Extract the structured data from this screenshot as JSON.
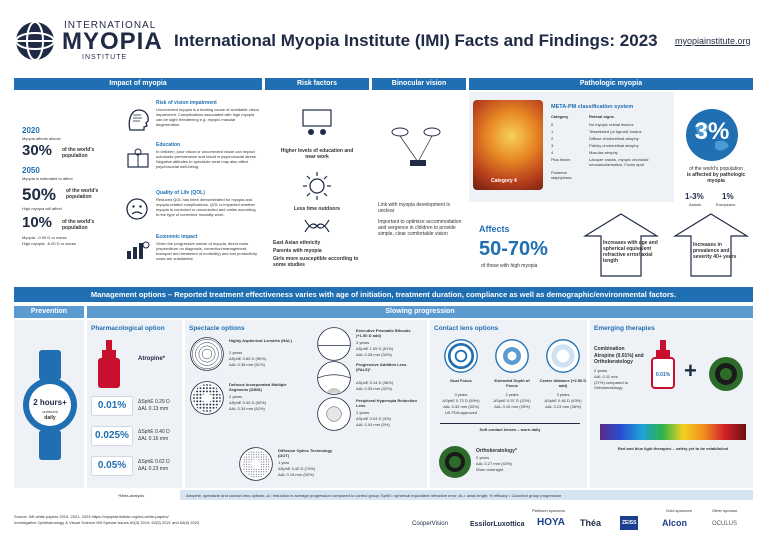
{
  "header": {
    "logo_line1": "INTERNATIONAL",
    "logo_line2": "MYOPIA",
    "logo_line3": "INSTITUTE",
    "title": "International Myopia Institute (IMI) Facts and Findings: 2023",
    "url": "myopiainstitute.org"
  },
  "bands": {
    "impact": "Impact of myopia",
    "risk": "Risk factors",
    "binocular": "Binocular vision",
    "pathologic": "Pathologic myopia",
    "management": "Management options – Reported treatment effectiveness varies with age of initiation, treatment duration, compliance as well as demographic/environmental factors.",
    "prevention": "Prevention",
    "slowing": "Slowing progression"
  },
  "impact": {
    "year2020": "2020",
    "year2020_sub": "Myopia affects almost",
    "pct30": "30%",
    "pct30_label": "of the world's population",
    "year2050": "2050",
    "year2050_sub": "Myopia is estimated to affect",
    "pct50": "50%",
    "pct50_label": "of the world's population",
    "pct50_sub": "High myopia will affect",
    "pct10": "10%",
    "pct10_label": "of the world's population",
    "legend1": "Myopia: -0.50 D or worse",
    "legend2": "High myopia: -6.00 D or worse",
    "items": [
      {
        "title": "Risk of vision impairment",
        "text": "Uncorrected myopia is a leading cause of avoidable vision impairment. Complications associated with high myopia can be sight threatening e.g. myopic macular degeneration."
      },
      {
        "title": "Education",
        "text": "In children, poor vision or uncorrected vision can impact scholastic performance and result in psychosocial stress. Negative attitudes to spectacle wear may also affect psychosocial well-being."
      },
      {
        "title": "Quality of Life (QOL)",
        "text": "Reduced QOL has been demonstrated for myopia and myopia-related complications. QOL is impacted whether myopia is corrected or uncorrected and varies according to the type of corrective modality worn."
      },
      {
        "title": "Economic impact",
        "text": "Given the progressive nature of myopia, direct costs (expenditure on diagnosis, correction/management, transport and treatment of morbidity) and lost productivity costs are substantial."
      }
    ]
  },
  "risk": {
    "item1": "Higher levels of education and near work",
    "item2": "Less time outdoors",
    "bullets": [
      "East Asian ethnicity",
      "Parents with myopia",
      "Girls more susceptible according to some studies"
    ]
  },
  "binocular": {
    "bullets": [
      "Link with myopia development is unclear",
      "Important to optimize accommodation and vergence in children to provide simple, clear comfortable vision"
    ]
  },
  "pathologic": {
    "table_title": "META-PM classification system",
    "col1": "Category",
    "col2": "Retinal signs",
    "fundus_label": "Category 4",
    "rows": [
      {
        "c": "0",
        "s": "No myopic retinal lesions"
      },
      {
        "c": "1",
        "s": "Tessellated (or tigroid) fundus"
      },
      {
        "c": "2",
        "s": "Diffuse chorioretinal atrophy"
      },
      {
        "c": "3",
        "s": "Patchy chorioretinal atrophy"
      },
      {
        "c": "4",
        "s": "Macular atrophy"
      },
      {
        "c": "Plus lesion",
        "s": "Lacquer cracks, myopic choroidal neovascularization, Fuchs spot"
      },
      {
        "c": "Posterior staphyloma",
        "s": ""
      }
    ],
    "globe_pct": "3%",
    "globe_text1": "of the world's population",
    "globe_text2": "is affected by pathologic myopia",
    "asian_val": "1-3%",
    "asian_label": "Asians",
    "euro_val": "1%",
    "euro_label": "Europeans",
    "affects": "Affects",
    "affects_pct": "50-70%",
    "affects_sub": "of those with high myopia",
    "arrow1": "Increases with age and spherical equivalent refractive error/ axial length",
    "arrow2": "Increases in prevalence and severity 40+ years"
  },
  "prevention": {
    "watch_big": "2 hours+",
    "watch_small1": "outdoors",
    "watch_small2": "daily"
  },
  "pharma": {
    "head": "Pharmacological option",
    "drug": "Atropine*",
    "rows": [
      {
        "dose": "0.01%",
        "l1": "ΔSphE 0.29 D",
        "l2": "ΔAL 0.13 mm"
      },
      {
        "dose": "0.025%",
        "l1": "ΔSphE 0.40 D",
        "l2": "ΔAL 0.16 mm"
      },
      {
        "dose": "0.05%",
        "l1": "ΔSphE 0.62 D",
        "l2": "ΔAL 0.23 mm"
      }
    ]
  },
  "spectacles": {
    "head": "Spectacle options",
    "items": [
      {
        "name": "Highly Aspherical Lenslets (HAL)",
        "dur": "2 years",
        "l1": "ΔSphE 0.80 D (55%)",
        "l2": "ΔAL 0.35 mm (51%)"
      },
      {
        "name": "Defocus Incorporated Multiple Segments (DIMS)",
        "dur": "2 years",
        "l1": "ΔSphE 0.44 D (52%)",
        "l2": "ΔAL 0.34 mm (62%)"
      },
      {
        "name": "Diffusion Optics Technology (DOT)",
        "dur": "1 year",
        "l1": "ΔSphE 0.40 D (74%)",
        "l2": "ΔAL 0.15 mm (50%)"
      },
      {
        "name": "Executive Prismatic Bifocals (+1.50 D add)",
        "dur": "3 years",
        "l1": "ΔSphE 1.05 D (51%)",
        "l2": "ΔAL 0.28 mm (34%)"
      },
      {
        "name": "Progressive Addition Lens (PALS)*",
        "dur": "",
        "l1": "ΔSphE 0.14 D (38%)",
        "l2": "ΔAL 0.05 mm (32%)"
      },
      {
        "name": "Peripheral Hyperopia Reduction Lens",
        "dur": "2 years",
        "l1": "ΔSphE 0.04 D (3%)",
        "l2": "ΔAL 0.04 mm (5%)"
      }
    ]
  },
  "contacts": {
    "head": "Contact lens options",
    "items": [
      {
        "name": "Dual Focus",
        "dur": "3 years",
        "l1": "ΔSphE 0.73 D (59%)",
        "l2": "ΔAL 0.32 mm (52%)",
        "l3": "US FDA approved"
      },
      {
        "name": "Extended Depth of Focus",
        "dur": "2 years",
        "l1": "ΔSphE 0.37 D (32%)",
        "l2": "ΔAL 0.15 mm (25%)",
        "l3": ""
      },
      {
        "name": "Center distance (+2.50 D add)",
        "dur": "3 years",
        "l1": "ΔSphE 0.46 D (43%)",
        "l2": "ΔAL 0.23 mm (36%)",
        "l3": ""
      }
    ],
    "soft_note": "Soft contact lenses – worn daily",
    "ortho": "Orthokeratology*",
    "ortho_dur": "2 years",
    "ortho_l1": "ΔAL 0.27 mm (43%)",
    "ortho_l2": "Worn overnight"
  },
  "emerging": {
    "head": "Emerging therapies",
    "combo_title": "Combination",
    "combo_text": "Atropine (0.01%) and Orthokeratology",
    "combo_dur": "2 years",
    "combo_l1": "ΔAL 0.11 mm",
    "combo_l2": "(27%) compared to Orthokeratology",
    "bottle": "0.01%",
    "light_note": "Red and blue light therapies – safety yet to be established"
  },
  "footer": {
    "meta": "*Meta-analysis",
    "defs": "Atropine, spectacle and contact lens options: Δ= reduction in average progression compared to control group; SphE= spherical equivalent refractive error; AL= axial length; % efficacy = Δ/control group progression",
    "sources1": "Source: IMI white papers 2019, 2021, 2023 https://myopiainstitute.org/imi-white-papers/",
    "sources2": "Investigative Ophthalmology & Visual Science IMI Special Issues 60(3) 2019, 62(5) 2021 and 64(6) 2023",
    "platinum": "Platinum sponsors",
    "gold": "Gold sponsors",
    "other": "Other sponsor",
    "sponsors": [
      "CooperVision",
      "EssilorLuxottica",
      "HOYA",
      "Théa",
      "ZEISS",
      "Alcon",
      "OCULUS"
    ]
  }
}
